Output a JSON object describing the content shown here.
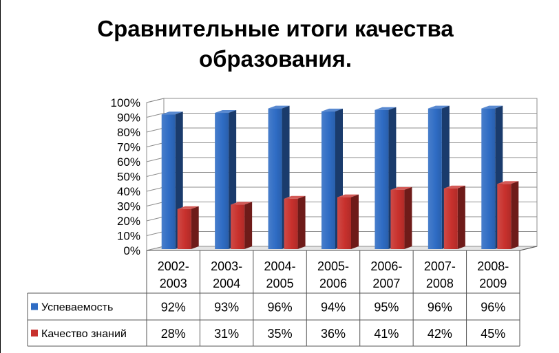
{
  "chart_data": {
    "type": "bar",
    "title": "Сравнительные итоги качества\nобразования.",
    "xlabel": "",
    "ylabel": "",
    "ylim": [
      0,
      100
    ],
    "y_tick_labels": [
      "0%",
      "10%",
      "20%",
      "30%",
      "40%",
      "50%",
      "60%",
      "70%",
      "80%",
      "90%",
      "100%"
    ],
    "categories": [
      [
        "2002-",
        "2003"
      ],
      [
        "2003-",
        "2004"
      ],
      [
        "2004-",
        "2005"
      ],
      [
        "2005-",
        "2006"
      ],
      [
        "2006-",
        "2007"
      ],
      [
        "2007-",
        "2008"
      ],
      [
        "2008-",
        "2009"
      ]
    ],
    "series": [
      {
        "name": "Успеваемость",
        "color": "#2f6cc4",
        "values": [
          92,
          93,
          96,
          94,
          95,
          96,
          96
        ],
        "labels": [
          "92%",
          "93%",
          "96%",
          "94%",
          "95%",
          "96%",
          "96%"
        ]
      },
      {
        "name": "Качество знаний",
        "color": "#c8312d",
        "values": [
          28,
          31,
          35,
          36,
          41,
          42,
          45
        ],
        "labels": [
          "28%",
          "31%",
          "35%",
          "36%",
          "41%",
          "42%",
          "45%"
        ]
      }
    ],
    "grid": true,
    "legend": "data-table",
    "style": "3d-clustered-column"
  }
}
